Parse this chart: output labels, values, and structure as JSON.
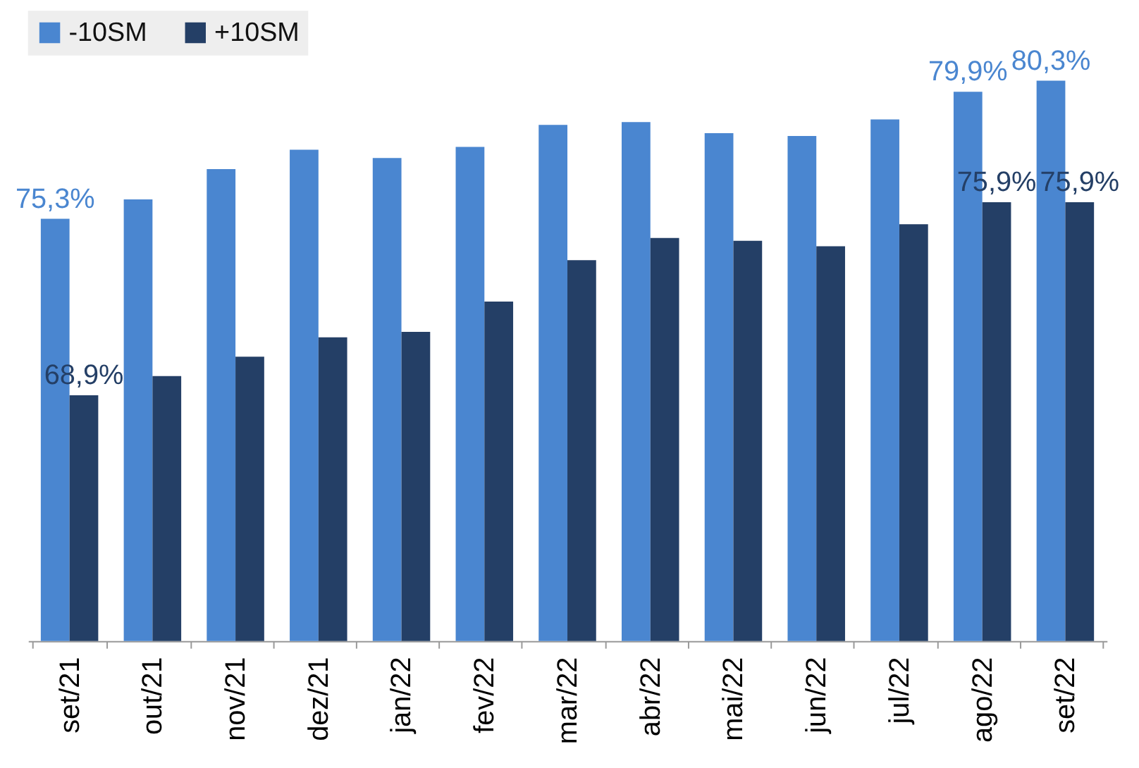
{
  "chart_data": {
    "type": "bar",
    "ylim": [
      60,
      80.3
    ],
    "categories": [
      "set/21",
      "out/21",
      "nov/21",
      "dez/21",
      "jan/22",
      "fev/22",
      "mar/22",
      "abr/22",
      "mai/22",
      "jun/22",
      "jul/22",
      "ago/22",
      "set/22"
    ],
    "series": [
      {
        "name": "-10SM",
        "color": "#4a86d0",
        "values": [
          75.3,
          76.0,
          77.1,
          77.8,
          77.5,
          77.9,
          78.7,
          78.8,
          78.4,
          78.3,
          78.9,
          79.9,
          80.3
        ],
        "value_labels": [
          "75,3%",
          null,
          null,
          null,
          null,
          null,
          null,
          null,
          null,
          null,
          null,
          "79,9%",
          "80,3%"
        ]
      },
      {
        "name": "+10SM",
        "color": "#243f66",
        "values": [
          68.9,
          69.6,
          70.3,
          71.0,
          71.2,
          72.3,
          73.8,
          74.6,
          74.5,
          74.3,
          75.1,
          75.9,
          75.9
        ],
        "value_labels": [
          "68,9%",
          null,
          null,
          null,
          null,
          null,
          null,
          null,
          null,
          null,
          null,
          "75,9%",
          "75,9%"
        ]
      }
    ],
    "legend": "top left"
  }
}
